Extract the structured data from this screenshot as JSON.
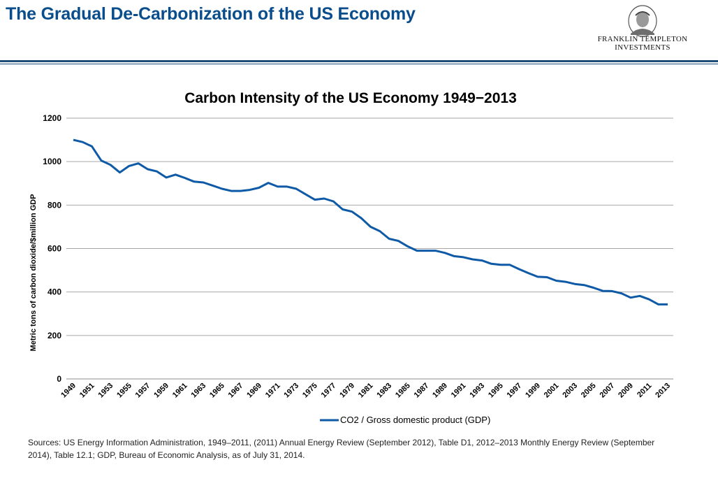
{
  "header": {
    "title": "The Gradual De-Carbonization of the US Economy",
    "logo_line1": "FRANKLIN TEMPLETON",
    "logo_line2": "INVESTMENTS"
  },
  "colors": {
    "title": "#0a4d8c",
    "series": "#0f5aa6",
    "rule": "#1f4e79",
    "grid": "#a6a6a6"
  },
  "chart_data": {
    "type": "line",
    "title": "Carbon Intensity of the US Economy 1949−2013",
    "ylabel": "Metric tons of carbon dioxide/$million GDP",
    "xlabel": "",
    "ylim": [
      0,
      1200
    ],
    "yticks": [
      0,
      200,
      400,
      600,
      800,
      1000,
      1200
    ],
    "grid": true,
    "legend_position": "bottom",
    "x": [
      1949,
      1950,
      1951,
      1952,
      1953,
      1954,
      1955,
      1956,
      1957,
      1958,
      1959,
      1960,
      1961,
      1962,
      1963,
      1964,
      1965,
      1966,
      1967,
      1968,
      1969,
      1970,
      1971,
      1972,
      1973,
      1974,
      1975,
      1976,
      1977,
      1978,
      1979,
      1980,
      1981,
      1982,
      1983,
      1984,
      1985,
      1986,
      1987,
      1988,
      1989,
      1990,
      1991,
      1992,
      1993,
      1994,
      1995,
      1996,
      1997,
      1998,
      1999,
      2000,
      2001,
      2002,
      2003,
      2004,
      2005,
      2006,
      2007,
      2008,
      2009,
      2010,
      2011,
      2012,
      2013
    ],
    "xtick_labels": [
      "1949",
      "1951",
      "1953",
      "1955",
      "1957",
      "1959",
      "1961",
      "1963",
      "1965",
      "1967",
      "1969",
      "1971",
      "1973",
      "1975",
      "1977",
      "1979",
      "1981",
      "1983",
      "1985",
      "1987",
      "1989",
      "1991",
      "1993",
      "1995",
      "1997",
      "1999",
      "2001",
      "2003",
      "2005",
      "2007",
      "2009",
      "2011",
      "2013"
    ],
    "series": [
      {
        "name": "CO2 /  Gross domestic product (GDP)",
        "values": [
          1100,
          1090,
          1070,
          1005,
          985,
          950,
          980,
          992,
          965,
          955,
          927,
          940,
          925,
          908,
          904,
          890,
          875,
          865,
          865,
          870,
          880,
          902,
          885,
          885,
          875,
          850,
          825,
          830,
          817,
          780,
          770,
          740,
          700,
          680,
          645,
          635,
          610,
          590,
          590,
          590,
          580,
          565,
          560,
          550,
          545,
          530,
          525,
          525,
          505,
          487,
          470,
          468,
          452,
          447,
          437,
          432,
          420,
          405,
          404,
          394,
          374,
          382,
          366,
          343,
          343
        ]
      }
    ]
  },
  "sources": "Sources: US Energy Information Administration, 1949–2011,  (2011) Annual Energy Review (September 2012), Table D1, 2012–2013  Monthly Energy Review (September 2014), Table 12.1; GDP, Bureau of Economic Analysis, as of July 31, 2014."
}
